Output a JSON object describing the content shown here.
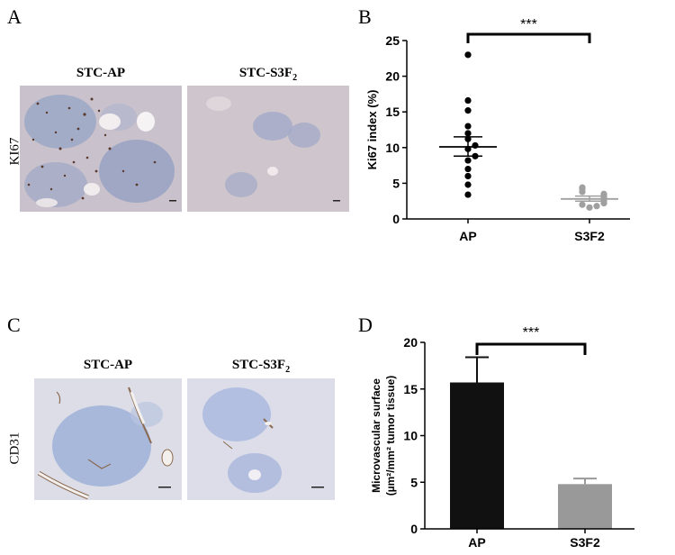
{
  "panels": {
    "A": {
      "letter": "A",
      "stain_label": "KI67",
      "images": [
        {
          "title_main": "STC-AP",
          "title_sub": ""
        },
        {
          "title_main": "STC-S3F",
          "title_sub": "2"
        }
      ]
    },
    "B": {
      "letter": "B"
    },
    "C": {
      "letter": "C",
      "stain_label": "CD31",
      "images": [
        {
          "title_main": "STC-AP",
          "title_sub": ""
        },
        {
          "title_main": "STC-S3F",
          "title_sub": "2"
        }
      ]
    },
    "D": {
      "letter": "D"
    }
  },
  "chart_data": [
    {
      "panel": "B",
      "type": "scatter",
      "categories": [
        "AP",
        "S3F2"
      ],
      "ylabel": "Ki67 index (%)",
      "ylim": [
        0,
        25
      ],
      "yticks": [
        0,
        5,
        10,
        15,
        20,
        25
      ],
      "significance": "***",
      "series": [
        {
          "category": "AP",
          "values": [
            23.0,
            16.6,
            15.2,
            13.0,
            12.0,
            11.2,
            10.3,
            9.8,
            8.8,
            8.2,
            7.0,
            6.0,
            4.8,
            3.4
          ],
          "mean": 10.1,
          "sem_upper": 11.5,
          "sem_lower": 8.8,
          "color": "#000000"
        },
        {
          "category": "S3F2",
          "values": [
            4.4,
            4.2,
            3.8,
            3.5,
            3.2,
            3.0,
            2.8,
            2.6,
            2.4,
            2.2,
            2.0,
            1.8,
            1.6
          ],
          "mean": 2.8,
          "sem_upper": 3.2,
          "sem_lower": 2.5,
          "color": "#a0a0a0"
        }
      ]
    },
    {
      "panel": "D",
      "type": "bar",
      "categories": [
        "AP",
        "S3F2"
      ],
      "ylabel_line1": "Microvascular surface",
      "ylabel_line2": "(µm²/mm² tumor tissue)",
      "ylim": [
        0,
        20
      ],
      "yticks": [
        0,
        5,
        10,
        15,
        20
      ],
      "significance": "***",
      "values": [
        15.7,
        4.8
      ],
      "errors": [
        18.4,
        5.4
      ],
      "colors": [
        "#111111",
        "#999999"
      ]
    }
  ]
}
